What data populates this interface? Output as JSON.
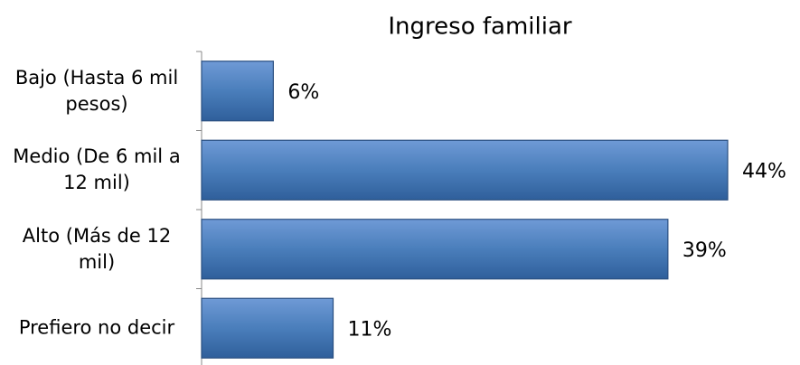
{
  "chart_data": {
    "type": "bar",
    "orientation": "horizontal",
    "title": "Ingreso familiar",
    "categories": [
      "Bajo (Hasta 6 mil pesos)",
      "Medio (De 6 mil a 12 mil)",
      "Alto (Más de 12 mil)",
      "Prefiero no decir"
    ],
    "values": [
      6,
      44,
      39,
      11
    ],
    "value_labels": [
      "6%",
      "44%",
      "39%",
      "11%"
    ],
    "color": "#4a7ebb"
  }
}
